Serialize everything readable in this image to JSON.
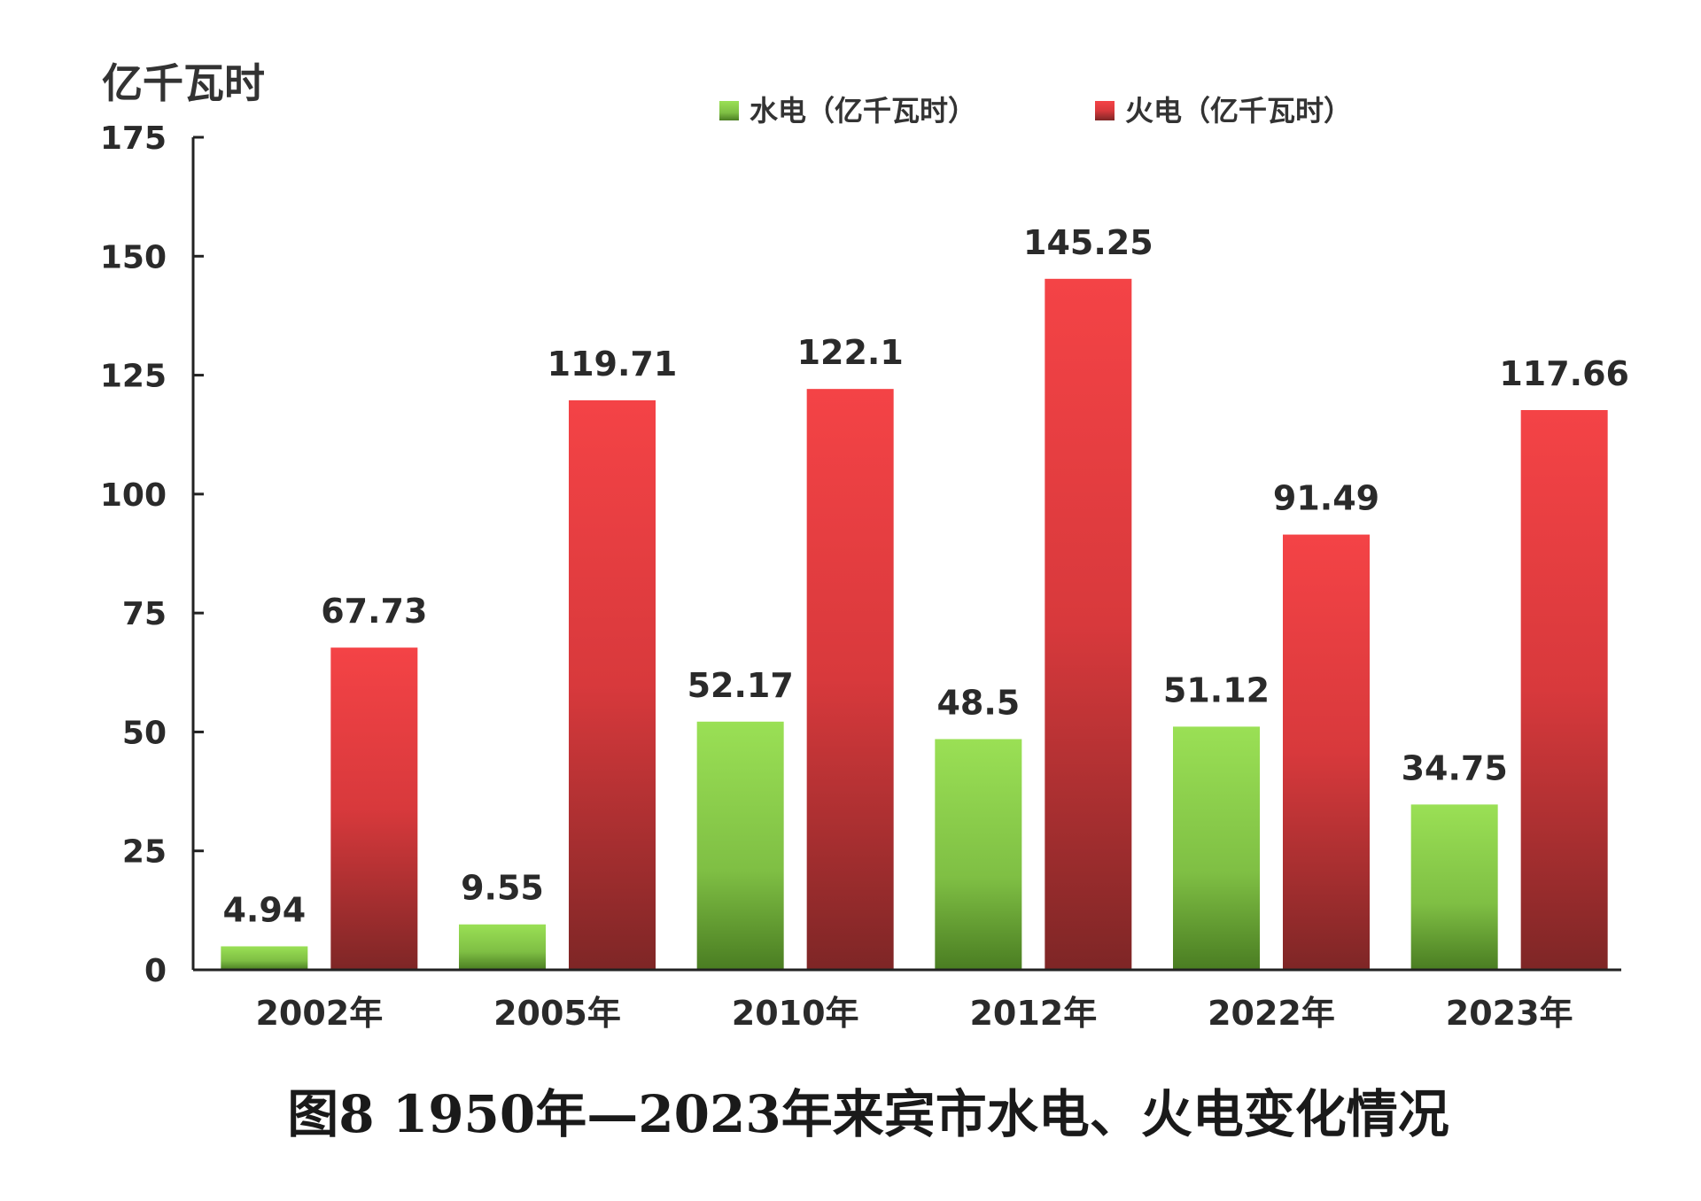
{
  "chart_data": {
    "type": "bar",
    "title": "图8 1950年—2023年来宾市水电、火电变化情况",
    "ylabel": "亿千瓦时",
    "xlabel": "",
    "categories": [
      "2002年",
      "2005年",
      "2010年",
      "2012年",
      "2022年",
      "2023年"
    ],
    "ylim": [
      0,
      175
    ],
    "yticks": [
      "0",
      "25",
      "50",
      "75",
      "100",
      "125",
      "150",
      "175"
    ],
    "grid": false,
    "legend_position": "top-right",
    "series": [
      {
        "name": "水电（亿千瓦时）",
        "color": "#8fd14f",
        "values": [
          4.94,
          9.55,
          52.17,
          48.5,
          51.12,
          34.75
        ],
        "labels": [
          "4.94",
          "9.55",
          "52.17",
          "48.5",
          "51.12",
          "34.75"
        ]
      },
      {
        "name": "火电（亿千瓦时）",
        "color": "#e8383d",
        "values": [
          67.73,
          119.71,
          122.1,
          145.25,
          91.49,
          117.66
        ],
        "labels": [
          "67.73",
          "119.71",
          "122.1",
          "145.25",
          "91.49",
          "117.66"
        ]
      }
    ]
  }
}
